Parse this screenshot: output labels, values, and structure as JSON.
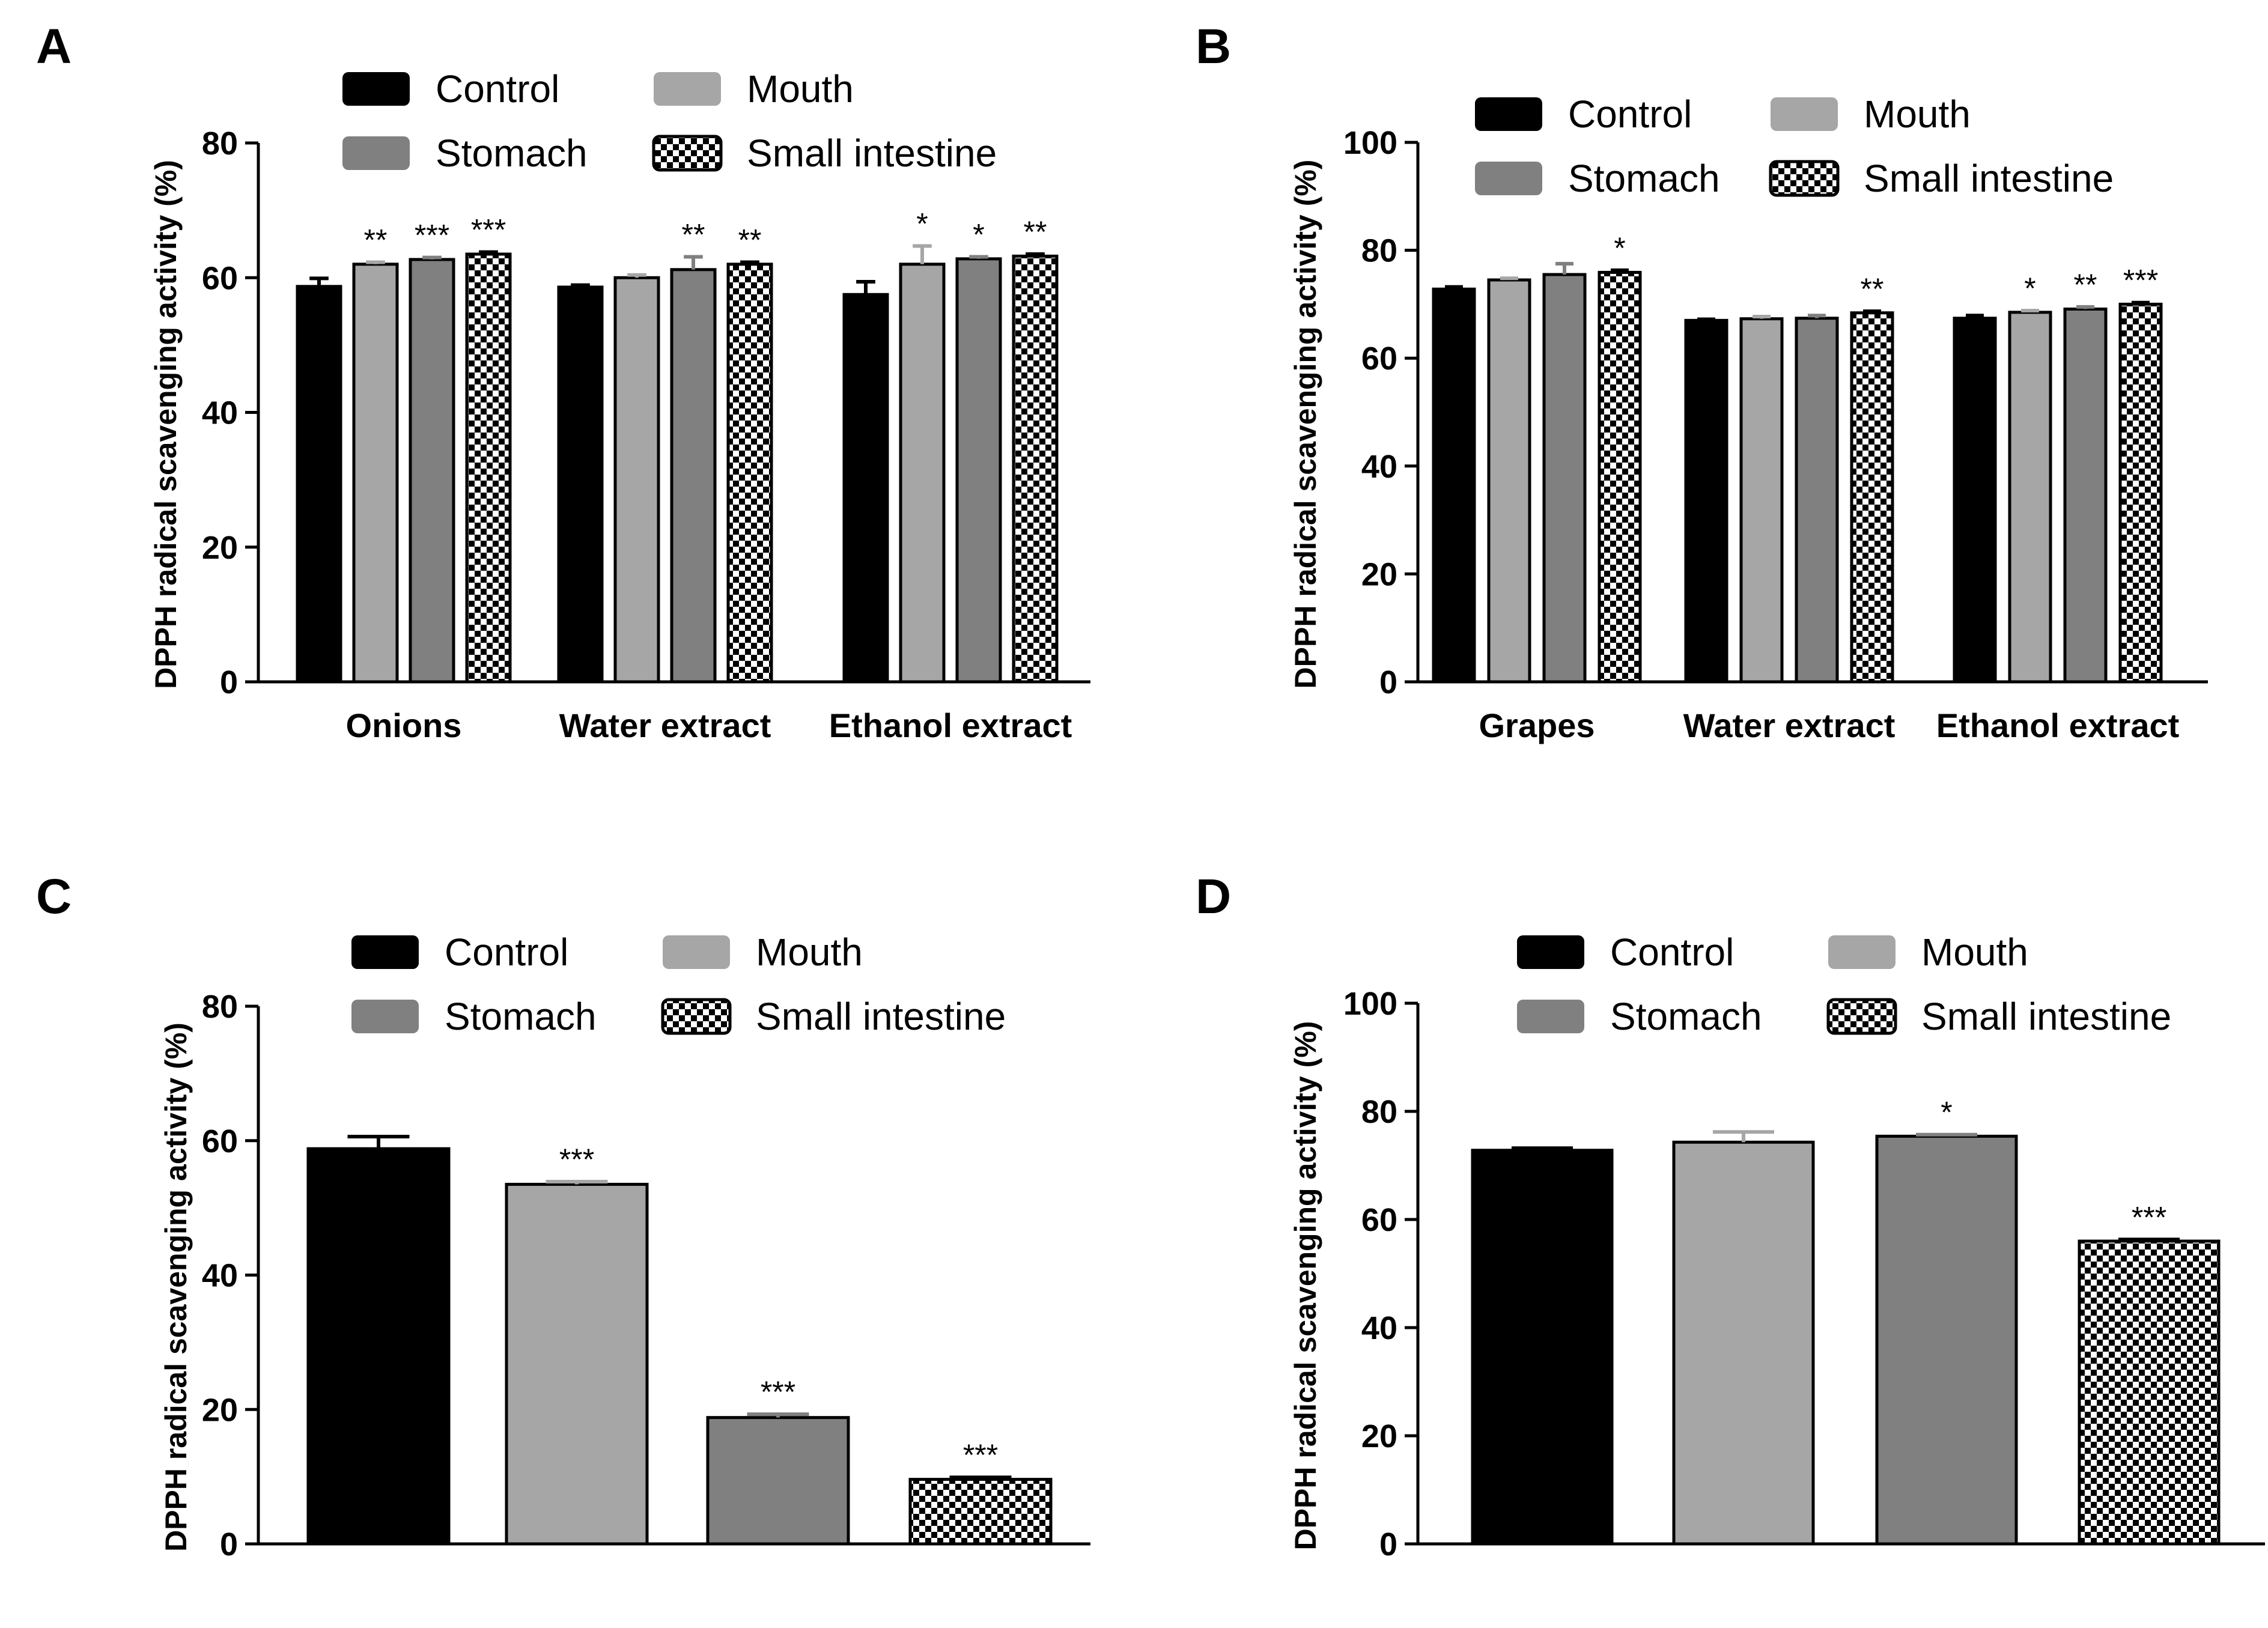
{
  "figure": {
    "series_colors": {
      "Control": "#000000",
      "Mouth": "#a6a6a6",
      "Stomach": "#808080",
      "Small intestine": "checker"
    }
  },
  "chart_data": [
    {
      "panel": "A",
      "type": "bar",
      "ylabel": "DPPH radical scavenging activity (%)",
      "xlabel": "",
      "ylim": [
        0,
        80
      ],
      "yticks": [
        0,
        20,
        40,
        60,
        80
      ],
      "categories": [
        "Onions",
        "Water extract",
        "Ethanol extract"
      ],
      "legend": [
        "Control",
        "Mouth",
        "Stomach",
        "Small intestine"
      ],
      "series": [
        {
          "name": "Control",
          "values": [
            58.7,
            58.6,
            57.5
          ],
          "errors": [
            1.2,
            0.3,
            1.9
          ],
          "sig": [
            "",
            "",
            ""
          ]
        },
        {
          "name": "Mouth",
          "values": [
            62.0,
            60.0,
            62.0
          ],
          "errors": [
            0.3,
            0.4,
            2.7
          ],
          "sig": [
            "**",
            "",
            "*"
          ]
        },
        {
          "name": "Stomach",
          "values": [
            62.7,
            61.2,
            62.8
          ],
          "errors": [
            0.3,
            1.9,
            0.3
          ],
          "sig": [
            "***",
            "**",
            "*"
          ]
        },
        {
          "name": "Small intestine",
          "values": [
            63.5,
            62.0,
            63.2
          ],
          "errors": [
            0.3,
            0.3,
            0.3
          ],
          "sig": [
            "***",
            "**",
            "**"
          ]
        }
      ]
    },
    {
      "panel": "B",
      "type": "bar",
      "ylabel": "DPPH radical scavenging activity (%)",
      "xlabel": "",
      "ylim": [
        0,
        100
      ],
      "yticks": [
        0,
        20,
        40,
        60,
        80,
        100
      ],
      "categories": [
        "Grapes",
        "Water extract",
        "Ethanol extract"
      ],
      "legend": [
        "Control",
        "Mouth",
        "Stomach",
        "Small intestine"
      ],
      "series": [
        {
          "name": "Control",
          "values": [
            72.8,
            67.0,
            67.4
          ],
          "errors": [
            0.4,
            0.2,
            0.5
          ],
          "sig": [
            "",
            "",
            ""
          ]
        },
        {
          "name": "Mouth",
          "values": [
            74.5,
            67.3,
            68.5
          ],
          "errors": [
            0.3,
            0.4,
            0.3
          ],
          "sig": [
            "",
            "",
            "*"
          ]
        },
        {
          "name": "Stomach",
          "values": [
            75.5,
            67.4,
            69.1
          ],
          "errors": [
            2.0,
            0.5,
            0.4
          ],
          "sig": [
            "",
            "",
            "**"
          ]
        },
        {
          "name": "Small intestine",
          "values": [
            75.9,
            68.4,
            70.0
          ],
          "errors": [
            0.4,
            0.3,
            0.3
          ],
          "sig": [
            "*",
            "**",
            "***"
          ]
        }
      ]
    },
    {
      "panel": "C",
      "type": "bar",
      "ylabel": "DPPH radical scavenging activity (%)",
      "xlabel": "",
      "ylim": [
        0,
        80
      ],
      "yticks": [
        0,
        20,
        40,
        60,
        80
      ],
      "categories": [
        "Control",
        "Mouth",
        "Stomach",
        "Small intestine"
      ],
      "legend": [
        "Control",
        "Mouth",
        "Stomach",
        "Small intestine"
      ],
      "values": [
        58.8,
        53.5,
        18.8,
        9.6
      ],
      "errors": [
        1.8,
        0.4,
        0.5,
        0.3
      ],
      "sig": [
        "",
        "***",
        "***",
        "***"
      ]
    },
    {
      "panel": "D",
      "type": "bar",
      "ylabel": "DPPH radical scavenging activity (%)",
      "xlabel": "",
      "ylim": [
        0,
        100
      ],
      "yticks": [
        0,
        20,
        40,
        60,
        80,
        100
      ],
      "categories": [
        "Control",
        "Mouth",
        "Stomach",
        "Small intestine"
      ],
      "legend": [
        "Control",
        "Mouth",
        "Stomach",
        "Small intestine"
      ],
      "values": [
        72.8,
        74.3,
        75.4,
        56.0
      ],
      "errors": [
        0.4,
        1.9,
        0.3,
        0.3
      ],
      "sig": [
        "",
        "",
        "*",
        "***"
      ]
    }
  ]
}
